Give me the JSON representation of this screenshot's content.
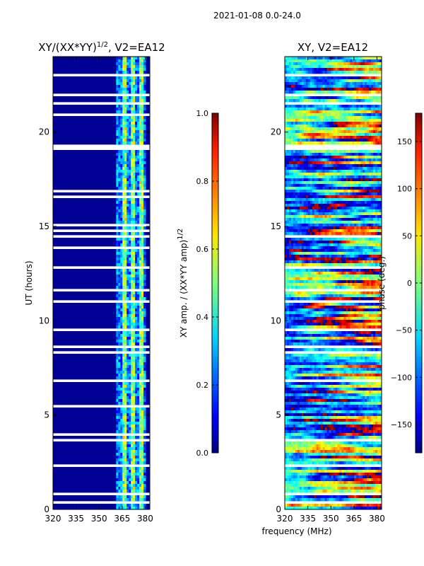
{
  "figure": {
    "suptitle": "2021-01-08 0.0-24.0",
    "xlabel_shared": "frequency (MHz)"
  },
  "chart_data": [
    {
      "type": "heatmap",
      "title_main": "XY/(XX*YY)",
      "title_sup": "1/2",
      "title_suffix": ", V2=EA12",
      "xlabel": "frequency (MHz)",
      "ylabel": "UT (hours)",
      "xlim": [
        320,
        383
      ],
      "ylim": [
        0,
        24
      ],
      "xticks": [
        "320",
        "335",
        "350",
        "365",
        "380"
      ],
      "xtick_values": [
        320,
        335,
        350,
        365,
        380
      ],
      "yticks": [
        "0",
        "5",
        "10",
        "15",
        "20"
      ],
      "ytick_values": [
        0,
        5,
        10,
        15,
        20
      ],
      "colormap": "jet",
      "colorbar": {
        "label_main": "XY amp. / (XX*YY amp)",
        "label_sup": "1/2",
        "range": [
          0.0,
          1.0
        ],
        "ticks": [
          "0.0",
          "0.2",
          "0.4",
          "0.6",
          "0.8",
          "1.0"
        ],
        "tick_values": [
          0.0,
          0.2,
          0.4,
          0.6,
          0.8,
          1.0
        ]
      },
      "description": "Normalized XY amplitude near 0 below ~360 MHz; elevated (0.2-0.6) in 360-380 MHz band"
    },
    {
      "type": "heatmap",
      "title": "XY, V2=EA12",
      "xlabel": "frequency (MHz)",
      "ylabel": "",
      "xlim": [
        320,
        383
      ],
      "ylim": [
        0,
        24
      ],
      "xticks": [
        "320",
        "335",
        "350",
        "365",
        "380"
      ],
      "xtick_values": [
        320,
        335,
        350,
        365,
        380
      ],
      "yticks": [
        "0",
        "5",
        "10",
        "15",
        "20"
      ],
      "ytick_values": [
        0,
        5,
        10,
        15,
        20
      ],
      "colormap": "jet",
      "colorbar": {
        "label": "phase (deg.)",
        "range": [
          -180,
          180
        ],
        "ticks": [
          "−150",
          "−100",
          "−50",
          "0",
          "50",
          "100",
          "150"
        ],
        "tick_values": [
          -150,
          -100,
          -50,
          0,
          50,
          100,
          150
        ]
      },
      "description": "XY phase spanning full -180 to 180 degree range with banded structure"
    }
  ]
}
